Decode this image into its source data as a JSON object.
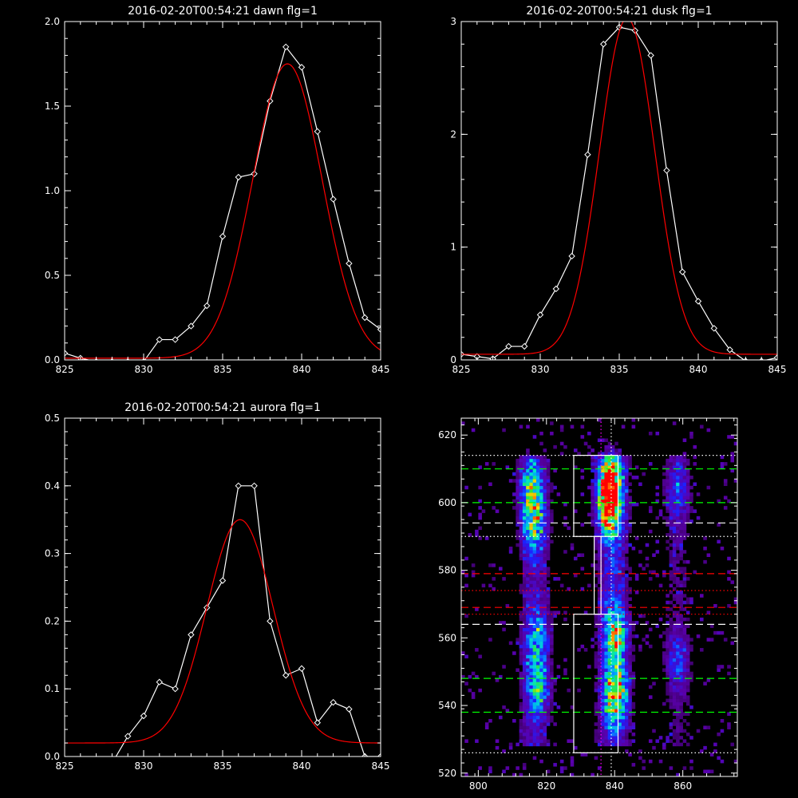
{
  "chart_data": [
    {
      "type": "line",
      "title": "2016-02-20T00:54:21 dawn flg=1",
      "xlabel": "",
      "ylabel": "",
      "xlim": [
        825,
        845
      ],
      "ylim": [
        0,
        2.0
      ],
      "xticks": [
        "825",
        "830",
        "835",
        "840",
        "845"
      ],
      "yticks": [
        "0.0",
        "0.5",
        "1.0",
        "1.5",
        "2.0"
      ],
      "grid": false,
      "series": [
        {
          "color": "#ffffff",
          "marker": "diamond",
          "x": [
            825,
            826,
            827,
            828,
            829,
            830,
            831,
            832,
            833,
            834,
            835,
            836,
            837,
            838,
            839,
            840,
            841,
            842,
            843,
            844,
            845
          ],
          "y": [
            0.04,
            0.01,
            -0.01,
            -0.01,
            -0.01,
            -0.01,
            0.12,
            0.12,
            0.2,
            0.32,
            0.73,
            1.08,
            1.1,
            1.53,
            1.85,
            1.73,
            1.35,
            0.95,
            0.57,
            0.25,
            0.18
          ]
        },
        {
          "color": "#ff0000",
          "marker": "none",
          "fit": "gaussian",
          "amplitude": 1.74,
          "center": 839.1,
          "sigma": 2.2,
          "offset": 0.01
        }
      ]
    },
    {
      "type": "line",
      "title": "2016-02-20T00:54:21 dusk flg=1",
      "xlabel": "",
      "ylabel": "",
      "xlim": [
        825,
        845
      ],
      "ylim": [
        0,
        3
      ],
      "xticks": [
        "825",
        "830",
        "835",
        "840",
        "845"
      ],
      "yticks": [
        "0",
        "1",
        "2",
        "3"
      ],
      "grid": false,
      "series": [
        {
          "color": "#ffffff",
          "marker": "diamond",
          "x": [
            825,
            826,
            827,
            828,
            829,
            830,
            831,
            832,
            833,
            834,
            835,
            836,
            837,
            838,
            839,
            840,
            841,
            842,
            843,
            844,
            845
          ],
          "y": [
            0.05,
            0.03,
            0.01,
            0.12,
            0.12,
            0.4,
            0.63,
            0.92,
            1.82,
            2.8,
            2.95,
            2.92,
            2.7,
            1.68,
            0.78,
            0.52,
            0.28,
            0.09,
            -0.01,
            -0.01,
            0.02
          ]
        },
        {
          "color": "#ff0000",
          "marker": "none",
          "fit": "gaussian",
          "amplitude": 2.98,
          "center": 835.5,
          "sigma": 1.75,
          "offset": 0.05
        }
      ]
    },
    {
      "type": "line",
      "title": "2016-02-20T00:54:21 aurora flg=1",
      "xlabel": "",
      "ylabel": "",
      "xlim": [
        825,
        845
      ],
      "ylim": [
        0,
        0.5
      ],
      "xticks": [
        "825",
        "830",
        "835",
        "840",
        "845"
      ],
      "yticks": [
        "0.0",
        "0.1",
        "0.2",
        "0.3",
        "0.4",
        "0.5"
      ],
      "grid": false,
      "series": [
        {
          "color": "#ffffff",
          "marker": "diamond",
          "x": [
            825,
            826,
            827,
            828,
            829,
            830,
            831,
            832,
            833,
            834,
            835,
            836,
            837,
            838,
            839,
            840,
            841,
            842,
            843,
            844,
            845
          ],
          "y": [
            -0.01,
            -0.01,
            -0.01,
            -0.01,
            0.03,
            0.06,
            0.11,
            0.1,
            0.18,
            0.22,
            0.26,
            0.4,
            0.4,
            0.2,
            0.12,
            0.13,
            0.05,
            0.08,
            0.07,
            0.0,
            0.0
          ]
        },
        {
          "color": "#ff0000",
          "marker": "none",
          "fit": "gaussian",
          "amplitude": 0.33,
          "center": 836.1,
          "sigma": 2.1,
          "offset": 0.02
        }
      ]
    },
    {
      "type": "heatmap",
      "title": "",
      "xlabel": "",
      "ylabel": "",
      "xlim": [
        795,
        876
      ],
      "ylim": [
        519,
        625
      ],
      "xticks": [
        "800",
        "820",
        "840",
        "860"
      ],
      "yticks": [
        "520",
        "540",
        "560",
        "580",
        "600",
        "620"
      ],
      "grid": false,
      "colormap": "rainbow",
      "intensity_blobs": [
        {
          "x": 815,
          "y": 603,
          "peak": 0.55
        },
        {
          "x": 816,
          "y": 593,
          "peak": 0.45
        },
        {
          "x": 817,
          "y": 560,
          "peak": 0.35
        },
        {
          "x": 817,
          "y": 545,
          "peak": 0.45
        },
        {
          "x": 838,
          "y": 605,
          "peak": 0.95
        },
        {
          "x": 838,
          "y": 597,
          "peak": 0.7
        },
        {
          "x": 840,
          "y": 560,
          "peak": 0.55
        },
        {
          "x": 840,
          "y": 543,
          "peak": 0.75
        },
        {
          "x": 858,
          "y": 603,
          "peak": 0.25
        },
        {
          "x": 858,
          "y": 553,
          "peak": 0.25
        }
      ],
      "boxes": [
        {
          "x0": 828,
          "x1": 841,
          "y0": 590,
          "y1": 614,
          "color": "#ffffff"
        },
        {
          "x0": 828,
          "x1": 841,
          "y0": 526,
          "y1": 567,
          "color": "#ffffff"
        },
        {
          "x0": 834,
          "x1": 836,
          "y0": 567,
          "y1": 590,
          "color": "#ffffff"
        }
      ],
      "hlines": [
        {
          "y": 614,
          "color": "#ffffff",
          "style": "dotted"
        },
        {
          "y": 610,
          "color": "#00ff00",
          "style": "dashed"
        },
        {
          "y": 600,
          "color": "#00ff00",
          "style": "dashed"
        },
        {
          "y": 594,
          "color": "#ffffff",
          "style": "dashed"
        },
        {
          "y": 590,
          "color": "#ffffff",
          "style": "dotted"
        },
        {
          "y": 579,
          "color": "#ff0000",
          "style": "dashed"
        },
        {
          "y": 574,
          "color": "#ff0000",
          "style": "dotted"
        },
        {
          "y": 569,
          "color": "#ff0000",
          "style": "dashed"
        },
        {
          "y": 567,
          "color": "#ff0000",
          "style": "dotted"
        },
        {
          "y": 564,
          "color": "#ffffff",
          "style": "dashed"
        },
        {
          "y": 548,
          "color": "#00ff00",
          "style": "dashed"
        },
        {
          "y": 538,
          "color": "#00ff00",
          "style": "dashed"
        },
        {
          "y": 526,
          "color": "#ffffff",
          "style": "dotted"
        }
      ],
      "vlines": [
        {
          "x": 836,
          "color": "#ff00ff",
          "style": "dotted"
        },
        {
          "x": 839,
          "color": "#ffffff",
          "style": "dotted"
        }
      ]
    }
  ]
}
